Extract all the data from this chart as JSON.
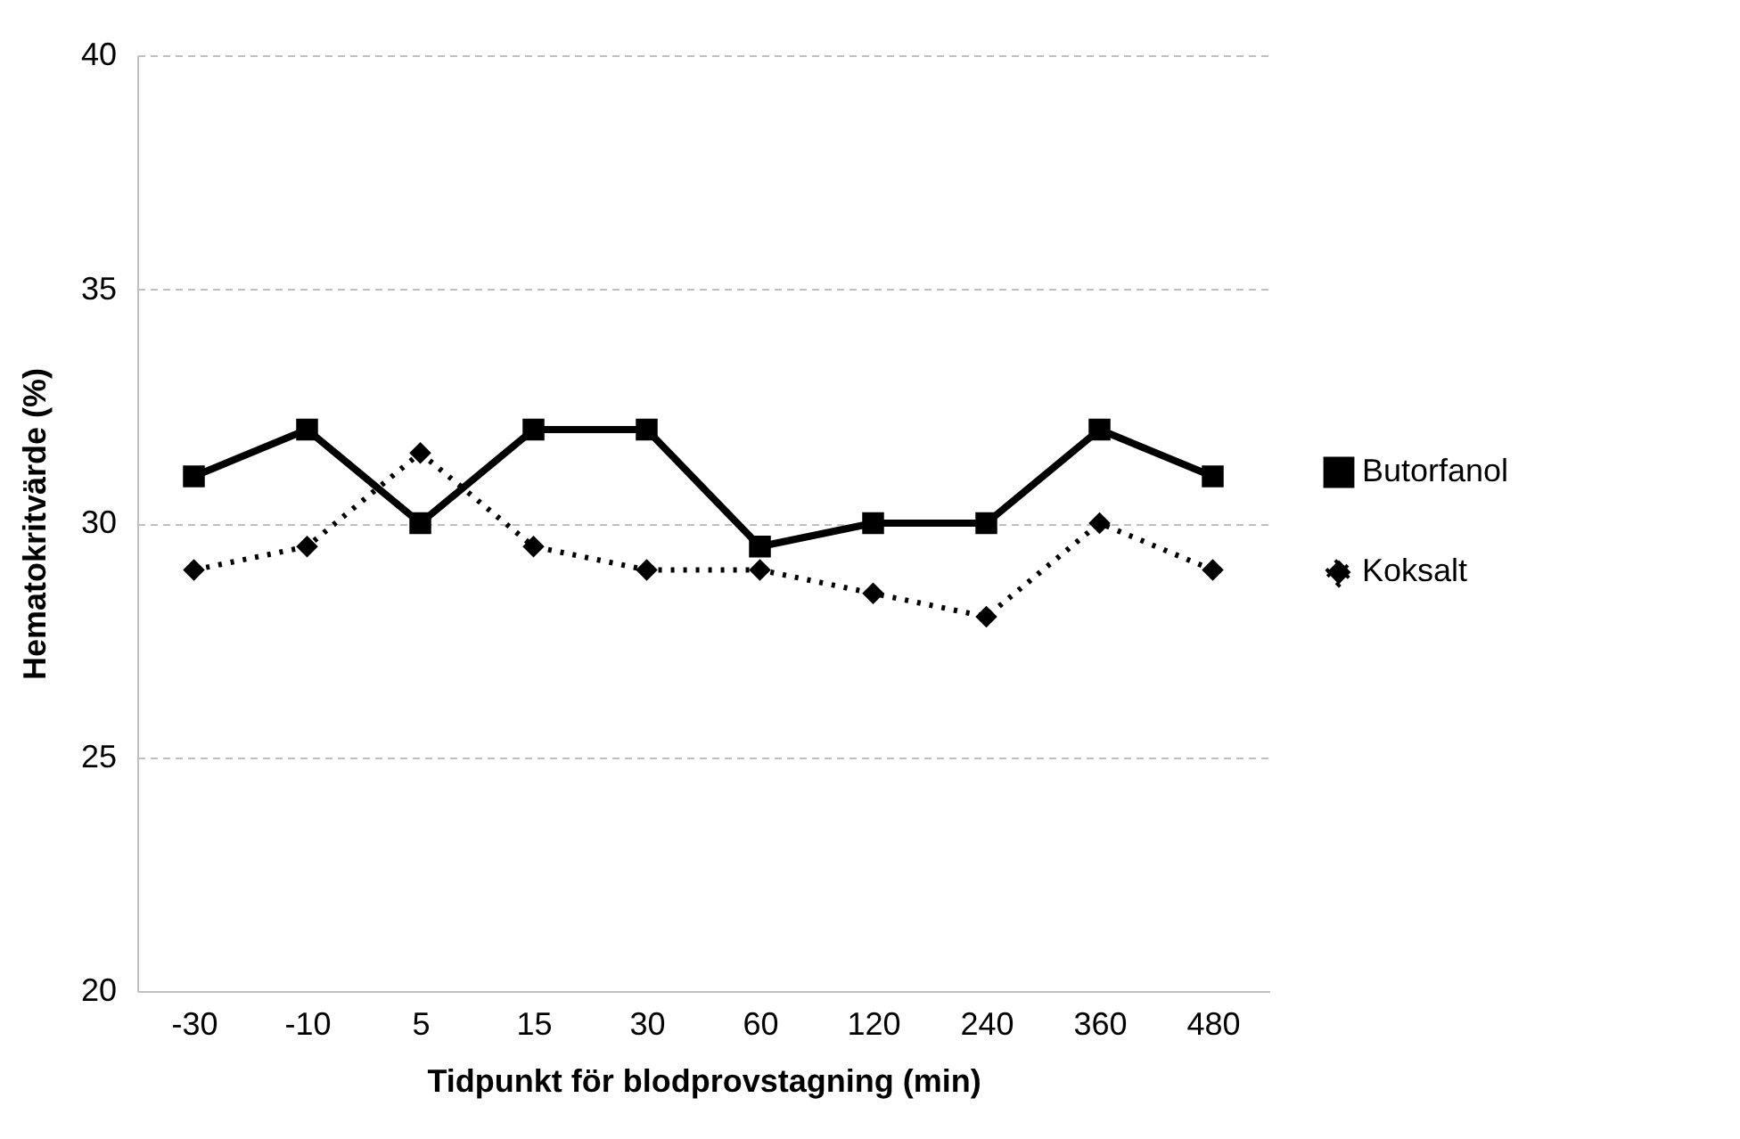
{
  "chart_data": {
    "type": "line",
    "xlabel": "Tidpunkt för blodprovstagning (min)",
    "ylabel": "Hematokritvärde (%)",
    "categories": [
      "-30",
      "-10",
      "5",
      "15",
      "30",
      "60",
      "120",
      "240",
      "360",
      "480"
    ],
    "series": [
      {
        "name": "Butorfanol",
        "color": "#000000",
        "line_style": "solid",
        "marker": "square",
        "values": [
          31,
          32,
          30,
          32,
          32,
          29.5,
          30,
          30,
          32,
          31
        ]
      },
      {
        "name": "Koksalt",
        "color": "#000000",
        "line_style": "dotted",
        "marker": "diamond",
        "values": [
          29,
          29.5,
          31.5,
          29.5,
          29,
          29,
          28.5,
          28,
          30,
          29
        ]
      }
    ],
    "ylim": [
      20,
      40
    ],
    "yticks": [
      20,
      25,
      30,
      35,
      40
    ],
    "grid": "y",
    "legend": "right"
  }
}
